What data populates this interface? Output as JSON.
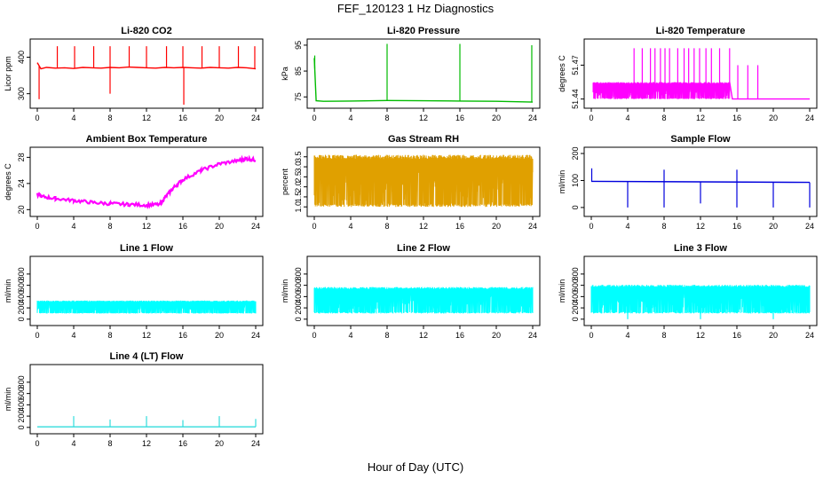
{
  "title": "FEF_120123  1 Hz Diagnostics",
  "xlabel": "Hour of Day (UTC)",
  "chart_data": [
    {
      "type": "line",
      "title": "Li-820 CO2",
      "ylabel": "Licor ppm",
      "color": "#ff0000",
      "xlim": [
        0,
        24
      ],
      "xticks": [
        0,
        4,
        8,
        12,
        16,
        20,
        24
      ],
      "ylim": [
        270,
        440
      ],
      "yticks": [
        300,
        400
      ],
      "series": [
        {
          "x": [
            0,
            0.4,
            1,
            2,
            3,
            4,
            5,
            6,
            7,
            8,
            9,
            10,
            11,
            12,
            13,
            14,
            15,
            16,
            17,
            18,
            19,
            20,
            21,
            22,
            23,
            24
          ],
          "values": [
            385,
            368,
            372,
            370,
            371,
            369,
            372,
            371,
            370,
            372,
            371,
            373,
            372,
            371,
            370,
            372,
            371,
            372,
            371,
            370,
            372,
            371,
            370,
            372,
            371,
            368
          ]
        }
      ],
      "spikes_up": [
        {
          "x": 2.2,
          "y": 430
        },
        {
          "x": 4.1,
          "y": 430
        },
        {
          "x": 6.2,
          "y": 430
        },
        {
          "x": 8.0,
          "y": 430
        },
        {
          "x": 10.1,
          "y": 430
        },
        {
          "x": 12.0,
          "y": 430
        },
        {
          "x": 14.2,
          "y": 430
        },
        {
          "x": 16.0,
          "y": 430
        },
        {
          "x": 18.1,
          "y": 430
        },
        {
          "x": 20.0,
          "y": 430
        },
        {
          "x": 22.1,
          "y": 430
        },
        {
          "x": 23.9,
          "y": 430
        }
      ],
      "spikes_down": [
        {
          "x": 0.2,
          "y": 285
        },
        {
          "x": 8.0,
          "y": 300
        },
        {
          "x": 16.1,
          "y": 270
        }
      ]
    },
    {
      "type": "line",
      "title": "Li-820 Pressure",
      "ylabel": "kPa",
      "color": "#00bb00",
      "xlim": [
        0,
        24
      ],
      "xticks": [
        0,
        4,
        8,
        12,
        16,
        20,
        24
      ],
      "ylim": [
        72,
        96
      ],
      "yticks": [
        75,
        85,
        95
      ],
      "series": [
        {
          "x": [
            0,
            0.2,
            1,
            4,
            8,
            12,
            16,
            20,
            24
          ],
          "values": [
            90,
            73.5,
            73.3,
            73.4,
            73.6,
            73.5,
            73.4,
            73.3,
            73.0
          ]
        }
      ],
      "spikes_up": [
        {
          "x": 0.05,
          "y": 91
        },
        {
          "x": 8.0,
          "y": 95.5
        },
        {
          "x": 16.0,
          "y": 95.5
        },
        {
          "x": 23.9,
          "y": 95
        }
      ],
      "spikes_down": []
    },
    {
      "type": "line",
      "title": "Li-820 Temperature",
      "ylabel": "degrees C",
      "color": "#ff00ff",
      "xlim": [
        0,
        24
      ],
      "xticks": [
        0,
        4,
        8,
        12,
        16,
        20,
        24
      ],
      "ylim": [
        51.435,
        51.49
      ],
      "yticks": [
        51.44,
        51.47
      ],
      "band": {
        "x0": 0.2,
        "x1": 15.2,
        "low": 51.44,
        "high": 51.455
      },
      "series": [
        {
          "x": [
            15.2,
            15.5,
            18,
            24
          ],
          "values": [
            51.455,
            51.44,
            51.44,
            51.44
          ]
        }
      ],
      "spikes_up": [
        {
          "x": 4.7,
          "y": 51.485
        },
        {
          "x": 5.6,
          "y": 51.485
        },
        {
          "x": 6.5,
          "y": 51.485
        },
        {
          "x": 7.0,
          "y": 51.485
        },
        {
          "x": 7.6,
          "y": 51.485
        },
        {
          "x": 8.1,
          "y": 51.485
        },
        {
          "x": 8.6,
          "y": 51.485
        },
        {
          "x": 9.5,
          "y": 51.485
        },
        {
          "x": 10.2,
          "y": 51.485
        },
        {
          "x": 10.7,
          "y": 51.485
        },
        {
          "x": 11.3,
          "y": 51.485
        },
        {
          "x": 11.9,
          "y": 51.485
        },
        {
          "x": 12.6,
          "y": 51.485
        },
        {
          "x": 13.2,
          "y": 51.485
        },
        {
          "x": 14.1,
          "y": 51.485
        },
        {
          "x": 15.2,
          "y": 51.485
        },
        {
          "x": 16.1,
          "y": 51.47
        },
        {
          "x": 17.2,
          "y": 51.47
        },
        {
          "x": 18.3,
          "y": 51.47
        }
      ],
      "spikes_down": []
    },
    {
      "type": "line",
      "title": "Ambient Box Temperature",
      "ylabel": "degrees C",
      "color": "#ff00ff",
      "xlim": [
        0,
        24
      ],
      "xticks": [
        0,
        4,
        8,
        12,
        16,
        20,
        24
      ],
      "ylim": [
        19.5,
        29
      ],
      "yticks": [
        20,
        24,
        28
      ],
      "series": [
        {
          "x": [
            0,
            0.5,
            2,
            4,
            6,
            8,
            10,
            12,
            13.5,
            14,
            15,
            16,
            18,
            20,
            22,
            23,
            24
          ],
          "values": [
            22.3,
            22.0,
            21.7,
            21.4,
            21.1,
            20.9,
            20.8,
            20.7,
            20.8,
            21.8,
            23.4,
            24.6,
            26.0,
            27.0,
            27.5,
            27.8,
            27.6
          ]
        }
      ],
      "noise": 0.5,
      "spikes_up": [],
      "spikes_down": []
    },
    {
      "type": "line",
      "title": "Gas Stream RH",
      "ylabel": "percent",
      "color": "#e0a000",
      "xlim": [
        0,
        24
      ],
      "xticks": [
        0,
        4,
        8,
        12,
        16,
        20,
        24
      ],
      "ylim": [
        0.7,
        3.8
      ],
      "yticks": [
        1.0,
        1.5,
        2.0,
        2.5,
        3.0,
        3.5
      ],
      "band": {
        "x0": 0,
        "x1": 24,
        "low": 1.0,
        "high": 3.6
      },
      "series": [],
      "spikes_up": [],
      "spikes_down": []
    },
    {
      "type": "line",
      "title": "Sample Flow",
      "ylabel": "ml/min",
      "color": "#0000dd",
      "xlim": [
        0,
        24
      ],
      "xticks": [
        0,
        4,
        8,
        12,
        16,
        20,
        24
      ],
      "ylim": [
        -20,
        210
      ],
      "yticks": [
        0,
        100,
        200
      ],
      "series": [
        {
          "x": [
            0,
            24
          ],
          "values": [
            97,
            93
          ]
        }
      ],
      "spikes_up": [
        {
          "x": 0.05,
          "y": 145
        },
        {
          "x": 8.0,
          "y": 140
        },
        {
          "x": 16.0,
          "y": 140
        }
      ],
      "spikes_down": [
        {
          "x": 4.0,
          "y": 0
        },
        {
          "x": 8.0,
          "y": 0
        },
        {
          "x": 12.0,
          "y": 15
        },
        {
          "x": 16.0,
          "y": 0
        },
        {
          "x": 20.0,
          "y": 0
        },
        {
          "x": 24.0,
          "y": 0
        }
      ]
    },
    {
      "type": "line",
      "title": "Line 1 Flow",
      "ylabel": "ml/min",
      "color": "#00ffff",
      "xlim": [
        0,
        24
      ],
      "xticks": [
        0,
        4,
        8,
        12,
        16,
        20,
        24
      ],
      "ylim": [
        -50,
        1050
      ],
      "yticks": [
        0,
        200,
        400,
        600,
        800
      ],
      "band": {
        "x0": 0,
        "x1": 24,
        "low": 100,
        "high": 330
      },
      "series": [],
      "spikes_up": [],
      "spikes_down": []
    },
    {
      "type": "line",
      "title": "Line 2 Flow",
      "ylabel": "ml/min",
      "color": "#00ffff",
      "xlim": [
        0,
        24
      ],
      "xticks": [
        0,
        4,
        8,
        12,
        16,
        20,
        24
      ],
      "ylim": [
        -50,
        1050
      ],
      "yticks": [
        0,
        200,
        400,
        600,
        800
      ],
      "band": {
        "x0": 0,
        "x1": 24,
        "low": 100,
        "high": 570
      },
      "series": [],
      "spikes_up": [],
      "spikes_down": []
    },
    {
      "type": "line",
      "title": "Line 3 Flow",
      "ylabel": "ml/min",
      "color": "#00ffff",
      "xlim": [
        0,
        24
      ],
      "xticks": [
        0,
        4,
        8,
        12,
        16,
        20,
        24
      ],
      "ylim": [
        -50,
        1050
      ],
      "yticks": [
        0,
        200,
        400,
        600,
        800
      ],
      "band": {
        "x0": 0,
        "x1": 24,
        "low": 100,
        "high": 610
      },
      "series": [],
      "spikes_up": [],
      "spikes_down": [
        {
          "x": 4.0,
          "y": 0
        },
        {
          "x": 12.0,
          "y": 0
        },
        {
          "x": 20.0,
          "y": 0
        }
      ]
    },
    {
      "type": "line",
      "title": "Line 4 (LT) Flow",
      "ylabel": "ml/min",
      "color": "#33dddd",
      "xlim": [
        0,
        24
      ],
      "xticks": [
        0,
        4,
        8,
        12,
        16,
        20,
        24
      ],
      "ylim": [
        -50,
        1050
      ],
      "yticks": [
        0,
        200,
        400,
        600,
        800
      ],
      "series": [
        {
          "x": [
            0,
            24
          ],
          "values": [
            10,
            10
          ]
        }
      ],
      "spikes_up": [
        {
          "x": 4.0,
          "y": 200
        },
        {
          "x": 8.0,
          "y": 140
        },
        {
          "x": 12.0,
          "y": 200
        },
        {
          "x": 16.0,
          "y": 130
        },
        {
          "x": 20.0,
          "y": 200
        },
        {
          "x": 24.0,
          "y": 150
        }
      ],
      "spikes_down": []
    }
  ]
}
